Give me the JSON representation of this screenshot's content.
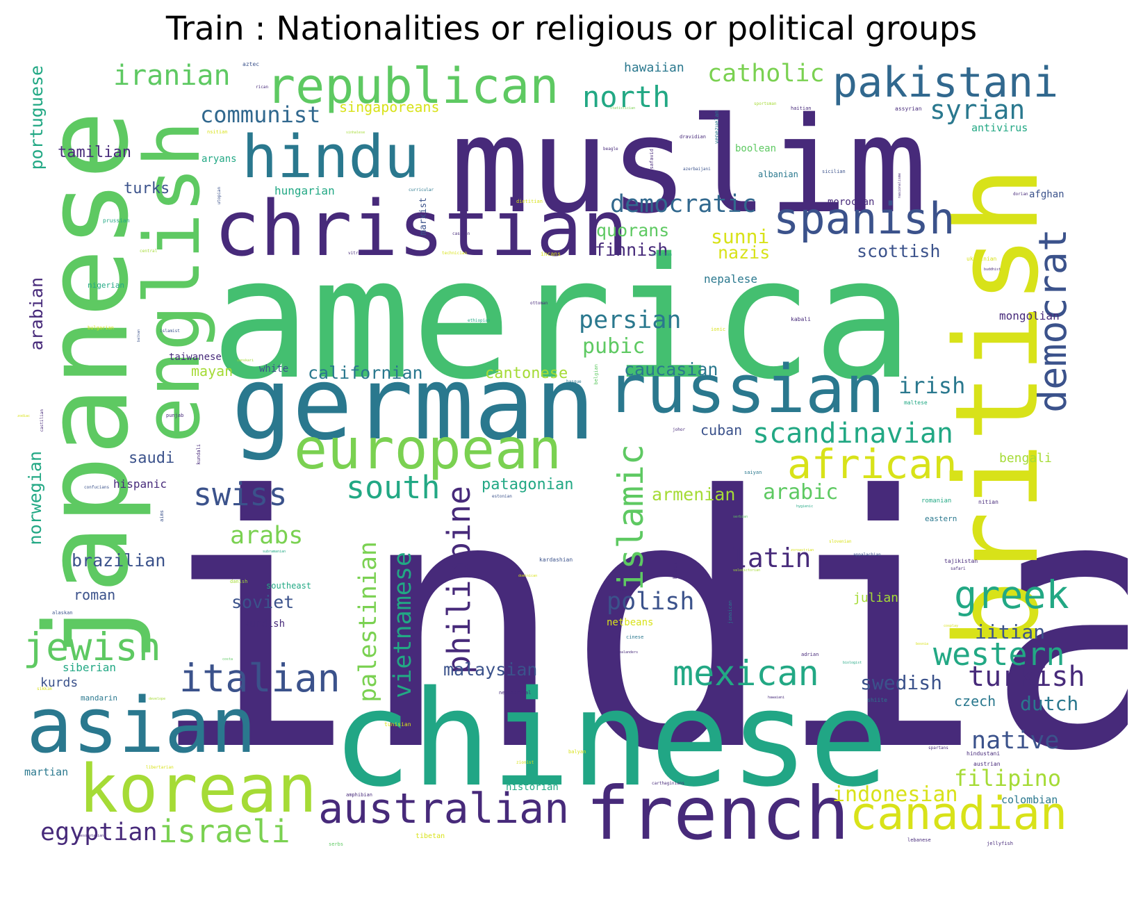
{
  "title": "Train : Nationalities or religious or political groups",
  "palette": {
    "dark_purple": "#472a7a",
    "blue": "#3b528b",
    "teal": "#2a788e",
    "green_teal": "#21a685",
    "green": "#44bf70",
    "light_green": "#5ec962",
    "yellow_green": "#a5db36",
    "yellow": "#d8e219"
  },
  "words": [
    {
      "text": "india",
      "color": "#472a7a"
    },
    {
      "text": "america",
      "color": "#44bf70"
    },
    {
      "text": "muslim",
      "color": "#472a7a"
    },
    {
      "text": "chinese",
      "color": "#21a685"
    },
    {
      "text": "japanese",
      "color": "#5ec962"
    },
    {
      "text": "british",
      "color": "#d8e219"
    },
    {
      "text": "german",
      "color": "#2a788e"
    },
    {
      "text": "christian",
      "color": "#472a7a"
    },
    {
      "text": "english",
      "color": "#5ec962"
    },
    {
      "text": "asian",
      "color": "#2a788e"
    },
    {
      "text": "russian",
      "color": "#2a788e"
    },
    {
      "text": "french",
      "color": "#472a7a"
    },
    {
      "text": "korean",
      "color": "#a5db36"
    },
    {
      "text": "european",
      "color": "#7ad151"
    },
    {
      "text": "hindu",
      "color": "#2a788e"
    },
    {
      "text": "republican",
      "color": "#5ec962"
    },
    {
      "text": "pakistani",
      "color": "#31688e"
    },
    {
      "text": "spanish",
      "color": "#3b528b"
    },
    {
      "text": "canadian",
      "color": "#d8e219"
    },
    {
      "text": "australian",
      "color": "#472a7a"
    },
    {
      "text": "african",
      "color": "#d8e219"
    },
    {
      "text": "democrat",
      "color": "#3b528b"
    },
    {
      "text": "italian",
      "color": "#3b528b"
    },
    {
      "text": "jewish",
      "color": "#5ec962"
    },
    {
      "text": "greek",
      "color": "#22a884"
    },
    {
      "text": "mexican",
      "color": "#22a884"
    },
    {
      "text": "western",
      "color": "#22a884"
    },
    {
      "text": "turkish",
      "color": "#472a7a"
    },
    {
      "text": "israeli",
      "color": "#7ad151"
    },
    {
      "text": "egyptian",
      "color": "#472a7a"
    },
    {
      "text": "islamic",
      "color": "#5ec962"
    },
    {
      "text": "philippine",
      "color": "#472a7a"
    },
    {
      "text": "vietnamese",
      "color": "#22a884"
    },
    {
      "text": "palestinian",
      "color": "#7ad151"
    },
    {
      "text": "south",
      "color": "#22a884"
    },
    {
      "text": "swiss",
      "color": "#3b528b"
    },
    {
      "text": "scandinavian",
      "color": "#22a884"
    },
    {
      "text": "iranian",
      "color": "#5ec962"
    },
    {
      "text": "north",
      "color": "#22a884"
    },
    {
      "text": "catholic",
      "color": "#7ad151"
    },
    {
      "text": "syrian",
      "color": "#2a788e"
    },
    {
      "text": "communist",
      "color": "#31688e"
    },
    {
      "text": "democratic",
      "color": "#31688e"
    },
    {
      "text": "persian",
      "color": "#2a788e"
    },
    {
      "text": "latin",
      "color": "#472a7a"
    },
    {
      "text": "polish",
      "color": "#3b528b"
    },
    {
      "text": "arabs",
      "color": "#7ad151"
    },
    {
      "text": "irish",
      "color": "#2a788e"
    },
    {
      "text": "native",
      "color": "#3b528b"
    },
    {
      "text": "filipino",
      "color": "#a5db36"
    },
    {
      "text": "indonesian",
      "color": "#d8e219"
    },
    {
      "text": "dutch",
      "color": "#2a788e"
    },
    {
      "text": "swedish",
      "color": "#3b528b"
    },
    {
      "text": "iitian",
      "color": "#3b528b"
    },
    {
      "text": "portuguese",
      "color": "#22a884"
    },
    {
      "text": "arabian",
      "color": "#472a7a"
    },
    {
      "text": "norwegian",
      "color": "#22a884"
    },
    {
      "text": "brazilian",
      "color": "#3b528b"
    },
    {
      "text": "arabic",
      "color": "#5ec962"
    },
    {
      "text": "malaysian",
      "color": "#3b528b"
    },
    {
      "text": "pubic",
      "color": "#5ec962"
    },
    {
      "text": "caucasian",
      "color": "#2a788e"
    },
    {
      "text": "californian",
      "color": "#2a788e"
    },
    {
      "text": "cantonese",
      "color": "#a5db36"
    },
    {
      "text": "patagonian",
      "color": "#22a884"
    },
    {
      "text": "armenian",
      "color": "#a5db36"
    },
    {
      "text": "soviet",
      "color": "#3b528b"
    },
    {
      "text": "sunni",
      "color": "#d8e219"
    },
    {
      "text": "nazis",
      "color": "#d8e219"
    },
    {
      "text": "quorans",
      "color": "#5ec962"
    },
    {
      "text": "finnish",
      "color": "#472a7a"
    },
    {
      "text": "scottish",
      "color": "#3b528b"
    },
    {
      "text": "singaporeans",
      "color": "#d8e219"
    },
    {
      "text": "tamilian",
      "color": "#472a7a"
    },
    {
      "text": "turks",
      "color": "#3b528b"
    },
    {
      "text": "saudi",
      "color": "#3b528b"
    },
    {
      "text": "roman",
      "color": "#3b528b"
    },
    {
      "text": "mayan",
      "color": "#a5db36"
    },
    {
      "text": "cuban",
      "color": "#3b528b"
    },
    {
      "text": "czech",
      "color": "#2a788e"
    },
    {
      "text": "hawaiian",
      "color": "#2a788e"
    },
    {
      "text": "kurds",
      "color": "#3b528b"
    },
    {
      "text": "siberian",
      "color": "#22a884"
    },
    {
      "text": "martian",
      "color": "#2a788e"
    },
    {
      "text": "historian",
      "color": "#22a884"
    },
    {
      "text": "colombian",
      "color": "#2a788e"
    },
    {
      "text": "mongolian",
      "color": "#472a7a"
    },
    {
      "text": "bengali",
      "color": "#a5db36"
    },
    {
      "text": "julian",
      "color": "#a5db36"
    },
    {
      "text": "antivirus",
      "color": "#22a884"
    },
    {
      "text": "afghan",
      "color": "#3b528b"
    },
    {
      "text": "hungarian",
      "color": "#22a884"
    },
    {
      "text": "aryans",
      "color": "#22a884"
    },
    {
      "text": "boolean",
      "color": "#5ec962"
    },
    {
      "text": "moroccan",
      "color": "#472a7a"
    },
    {
      "text": "albanian",
      "color": "#2a788e"
    },
    {
      "text": "nepalese",
      "color": "#2a788e"
    },
    {
      "text": "hispanic",
      "color": "#472a7a"
    },
    {
      "text": "taiwanese",
      "color": "#472a7a"
    },
    {
      "text": "white",
      "color": "#3b528b"
    },
    {
      "text": "kurdish",
      "color": "#472a7a"
    },
    {
      "text": "southeast",
      "color": "#22a884"
    },
    {
      "text": "netbeans",
      "color": "#d8e219"
    },
    {
      "text": "eastern",
      "color": "#2a788e"
    },
    {
      "text": "marxist",
      "color": "#3b528b"
    },
    {
      "text": "nigerian",
      "color": "#22a884"
    },
    {
      "text": "mandarin",
      "color": "#2a788e"
    },
    {
      "text": "aztec",
      "color": "#3b528b"
    },
    {
      "text": "rican",
      "color": "#472a7a"
    },
    {
      "text": "statistician",
      "color": "#7ad151"
    },
    {
      "text": "sportsman",
      "color": "#a5db36"
    },
    {
      "text": "haitian",
      "color": "#472a7a"
    },
    {
      "text": "assyrian",
      "color": "#472a7a"
    },
    {
      "text": "dravidian",
      "color": "#472a7a"
    },
    {
      "text": "venezuelan",
      "color": "#2a788e"
    },
    {
      "text": "nsitian",
      "color": "#d8e219"
    },
    {
      "text": "sinhalese",
      "color": "#a5db36"
    },
    {
      "text": "beagle",
      "color": "#472a7a"
    },
    {
      "text": "safavid",
      "color": "#472a7a"
    },
    {
      "text": "azerbaijani",
      "color": "#3b528b"
    },
    {
      "text": "sicilian",
      "color": "#3b528b"
    },
    {
      "text": "nasionalisme",
      "color": "#472a7a"
    },
    {
      "text": "utopian",
      "color": "#3b528b"
    },
    {
      "text": "curricular",
      "color": "#2a788e"
    },
    {
      "text": "dietitian",
      "color": "#d8e219"
    },
    {
      "text": "dorian",
      "color": "#472a7a"
    },
    {
      "text": "prussian",
      "color": "#22a884"
    },
    {
      "text": "caspian",
      "color": "#472a7a"
    },
    {
      "text": "central",
      "color": "#a5db36"
    },
    {
      "text": "vitruvian",
      "color": "#472a7a"
    },
    {
      "text": "technician",
      "color": "#d8e219"
    },
    {
      "text": "incans",
      "color": "#d8e219"
    },
    {
      "text": "croatian",
      "color": "#22a884"
    },
    {
      "text": "ukrainian",
      "color": "#d8e219"
    },
    {
      "text": "buddhist",
      "color": "#472a7a"
    },
    {
      "text": "ottoman",
      "color": "#472a7a"
    },
    {
      "text": "bulgarian",
      "color": "#d8e219"
    },
    {
      "text": "islamist",
      "color": "#3b528b"
    },
    {
      "text": "balkan",
      "color": "#3b528b"
    },
    {
      "text": "ethiopian",
      "color": "#22a884"
    },
    {
      "text": "ionic",
      "color": "#d8e219"
    },
    {
      "text": "kabali",
      "color": "#472a7a"
    },
    {
      "text": "sanskari",
      "color": "#a5db36"
    },
    {
      "text": "belgian",
      "color": "#5ec962"
    },
    {
      "text": "basque",
      "color": "#2a788e"
    },
    {
      "text": "maltese",
      "color": "#22a884"
    },
    {
      "text": "punjab",
      "color": "#472a7a"
    },
    {
      "text": "johor",
      "color": "#472a7a"
    },
    {
      "text": "kundali",
      "color": "#472a7a"
    },
    {
      "text": "castilian",
      "color": "#472a7a"
    },
    {
      "text": "zodiac",
      "color": "#d8e219"
    },
    {
      "text": "saiyan",
      "color": "#2a788e"
    },
    {
      "text": "confucians",
      "color": "#3b528b"
    },
    {
      "text": "estonian",
      "color": "#3b528b"
    },
    {
      "text": "aims",
      "color": "#3b528b"
    },
    {
      "text": "romanian",
      "color": "#22a884"
    },
    {
      "text": "nitian",
      "color": "#472a7a"
    },
    {
      "text": "serbian",
      "color": "#5ec962"
    },
    {
      "text": "hygienic",
      "color": "#22a884"
    },
    {
      "text": "slovenian",
      "color": "#d8e219"
    },
    {
      "text": "subramanian",
      "color": "#22a884"
    },
    {
      "text": "tajikistan",
      "color": "#472a7a"
    },
    {
      "text": "appalachian",
      "color": "#3b528b"
    },
    {
      "text": "safari",
      "color": "#472a7a"
    },
    {
      "text": "kardashian",
      "color": "#3b528b"
    },
    {
      "text": "zoroastrian",
      "color": "#d8e219"
    },
    {
      "text": "danish",
      "color": "#a5db36"
    },
    {
      "text": "dominican",
      "color": "#d8e219"
    },
    {
      "text": "black",
      "color": "#472a7a"
    },
    {
      "text": "valedictorian",
      "color": "#a5db36"
    },
    {
      "text": "oriental",
      "color": "#472a7a"
    },
    {
      "text": "alaskan",
      "color": "#3b528b"
    },
    {
      "text": "jamaican",
      "color": "#2a788e"
    },
    {
      "text": "cinese",
      "color": "#2a788e"
    },
    {
      "text": "costa",
      "color": "#5ec962"
    },
    {
      "text": "zealanders",
      "color": "#472a7a"
    },
    {
      "text": "adrian",
      "color": "#472a7a"
    },
    {
      "text": "biologist",
      "color": "#22a884"
    },
    {
      "text": "sikkim",
      "color": "#d8e219"
    },
    {
      "text": "develope",
      "color": "#a5db36"
    },
    {
      "text": "neanderthal",
      "color": "#472a7a"
    },
    {
      "text": "hawaiani",
      "color": "#472a7a"
    },
    {
      "text": "shiite",
      "color": "#2a788e"
    },
    {
      "text": "tunisian",
      "color": "#d8e219"
    },
    {
      "text": "spartans",
      "color": "#472a7a"
    },
    {
      "text": "hindustani",
      "color": "#472a7a"
    },
    {
      "text": "libertarian",
      "color": "#d8e219"
    },
    {
      "text": "balyan",
      "color": "#d8e219"
    },
    {
      "text": "zionist",
      "color": "#d8e219"
    },
    {
      "text": "carthaginians",
      "color": "#472a7a"
    },
    {
      "text": "austrian",
      "color": "#472a7a"
    },
    {
      "text": "amphibian",
      "color": "#472a7a"
    },
    {
      "text": "mesopotamian",
      "color": "#472a7a"
    },
    {
      "text": "serbs",
      "color": "#5ec962"
    },
    {
      "text": "lebanese",
      "color": "#472a7a"
    },
    {
      "text": "jellyfish",
      "color": "#472a7a"
    },
    {
      "text": "tibetan",
      "color": "#d8e219"
    },
    {
      "text": "cosplay",
      "color": "#d8e219"
    },
    {
      "text": "bosnia",
      "color": "#d8e219"
    }
  ]
}
